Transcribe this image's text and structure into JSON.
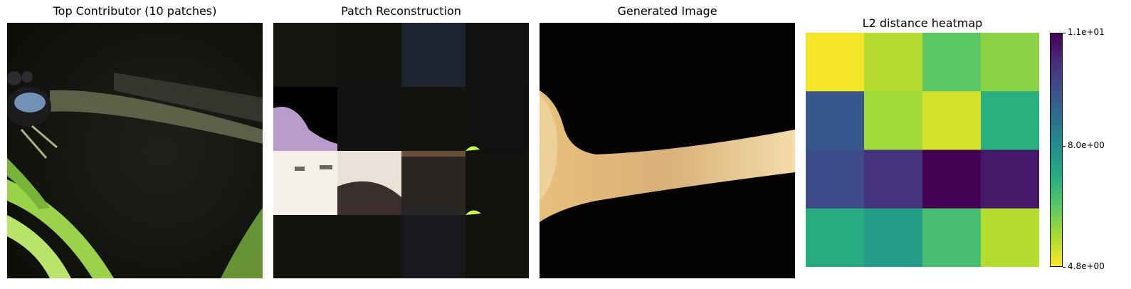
{
  "panels": {
    "top_contributor": {
      "title": "Top Contributor (10 patches)"
    },
    "patch_reconstruction": {
      "title": "Patch Reconstruction"
    },
    "generated_image": {
      "title": "Generated Image"
    }
  },
  "chart_data": {
    "type": "heatmap",
    "title": "L2 distance heatmap",
    "rows": 4,
    "cols": 4,
    "values": [
      [
        4.9,
        5.5,
        6.4,
        5.9
      ],
      [
        9.3,
        5.7,
        5.2,
        7.1
      ],
      [
        9.6,
        10.1,
        11.0,
        10.6
      ],
      [
        7.2,
        7.6,
        6.7,
        5.5
      ]
    ],
    "vmin": 4.8,
    "vmax": 11.0,
    "colormap": "viridis_r",
    "colorbar": {
      "ticks": [
        {
          "value": 11.0,
          "label": "1.1e+01"
        },
        {
          "value": 8.0,
          "label": "8.0e+00"
        },
        {
          "value": 4.8,
          "label": "4.8e+00"
        }
      ]
    }
  }
}
